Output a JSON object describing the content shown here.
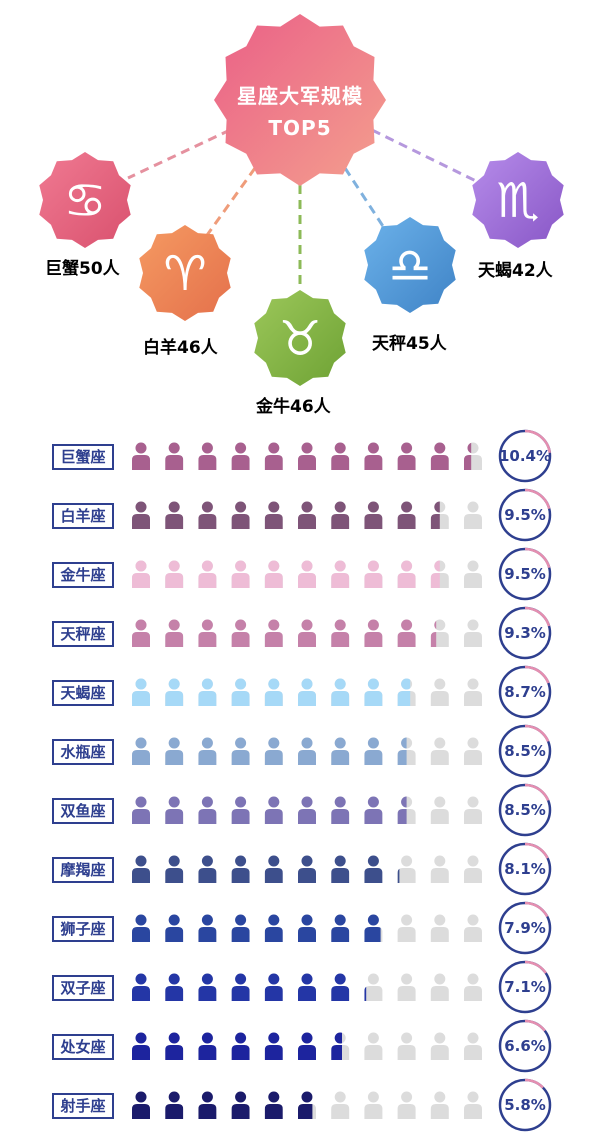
{
  "title": {
    "line1": "星座大军规模",
    "line2": "TOP5"
  },
  "top5": [
    {
      "label": "巨蟹50人",
      "color": "#e4617a",
      "icon": "cancer-icon",
      "symbol": "♋"
    },
    {
      "label": "白羊46人",
      "color": "#ec7e55",
      "icon": "aries-icon",
      "symbol": "♈"
    },
    {
      "label": "金牛46人",
      "color": "#7fb13f",
      "icon": "taurus-icon",
      "symbol": "♉"
    },
    {
      "label": "天秤45人",
      "color": "#4e97d6",
      "icon": "libra-icon",
      "symbol": "♎"
    },
    {
      "label": "天蝎42人",
      "color": "#9c6bd4",
      "icon": "scorpio-icon",
      "symbol": "♏"
    }
  ],
  "chart_data": {
    "type": "bar",
    "title": "星座大军规模",
    "unit": "%",
    "icons_per_row": 11,
    "categories": [
      "巨蟹座",
      "白羊座",
      "金牛座",
      "天秤座",
      "天蝎座",
      "水瓶座",
      "双鱼座",
      "摩羯座",
      "狮子座",
      "双子座",
      "处女座",
      "射手座"
    ],
    "values": [
      10.4,
      9.5,
      9.5,
      9.3,
      8.7,
      8.5,
      8.5,
      8.1,
      7.9,
      7.1,
      6.6,
      5.8
    ],
    "value_labels": [
      "10.4%",
      "9.5%",
      "9.5%",
      "9.3%",
      "8.7%",
      "8.5%",
      "8.5%",
      "8.1%",
      "7.9%",
      "7.1%",
      "6.6%",
      "5.8%"
    ],
    "colors": [
      "#a8608f",
      "#7e5478",
      "#eebcd6",
      "#c581a9",
      "#a6d9f7",
      "#8aa9d1",
      "#7d74b5",
      "#3d4f8c",
      "#2a46a0",
      "#2436a6",
      "#1d249e",
      "#1b1b6b"
    ],
    "empty_color": "#dcdcdc"
  }
}
